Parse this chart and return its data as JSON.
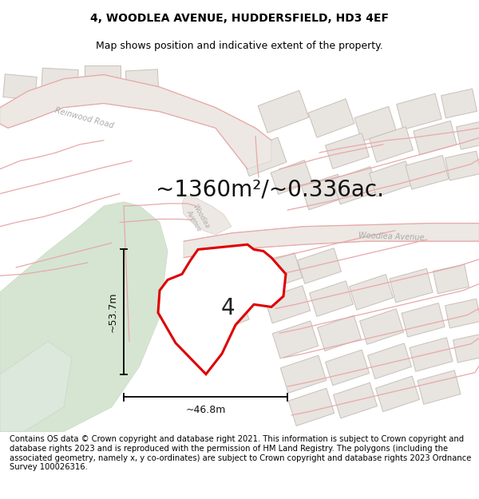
{
  "title": "4, WOODLEA AVENUE, HUDDERSFIELD, HD3 4EF",
  "subtitle": "Map shows position and indicative extent of the property.",
  "area_text": "~1360m²/~0.336ac.",
  "width_label": "~46.8m",
  "height_label": "~53.7m",
  "plot_number": "4",
  "footer": "Contains OS data © Crown copyright and database right 2021. This information is subject to Crown copyright and database rights 2023 and is reproduced with the permission of HM Land Registry. The polygons (including the associated geometry, namely x, y co-ordinates) are subject to Crown copyright and database rights 2023 Ordnance Survey 100026316.",
  "map_bg": "#ffffff",
  "plot_fill": "#ffffff",
  "plot_edge": "#dd0000",
  "green_color": "#d8e8d5",
  "road_fill": "#e8e4e0",
  "road_outline": "#e8b0b0",
  "building_fill": "#e8e4e0",
  "building_outline": "#c8c0b8",
  "road_line_color": "#e8a8a8",
  "title_fontsize": 10,
  "subtitle_fontsize": 9,
  "area_fontsize": 20,
  "plot_number_fontsize": 20,
  "footer_fontsize": 7.2,
  "dim_fontsize": 9
}
